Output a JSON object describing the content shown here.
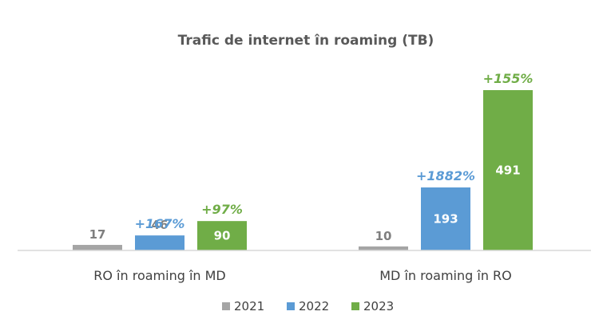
{
  "chart_data": {
    "type": "bar",
    "title": "Trafic de internet în roaming (TB)",
    "categories": [
      "RO în roaming în MD",
      "MD în roaming în RO"
    ],
    "series": [
      {
        "name": "2021",
        "color": "#a5a5a5",
        "values": [
          17,
          10
        ],
        "growth_labels": [
          "",
          ""
        ]
      },
      {
        "name": "2022",
        "color": "#5b9bd5",
        "values": [
          46,
          193
        ],
        "growth_labels": [
          "+167%",
          "+1882%"
        ]
      },
      {
        "name": "2023",
        "color": "#70ad47",
        "values": [
          90,
          491
        ],
        "growth_labels": [
          "+97%",
          "+155%"
        ]
      }
    ],
    "legend_position": "bottom",
    "grid": false
  }
}
